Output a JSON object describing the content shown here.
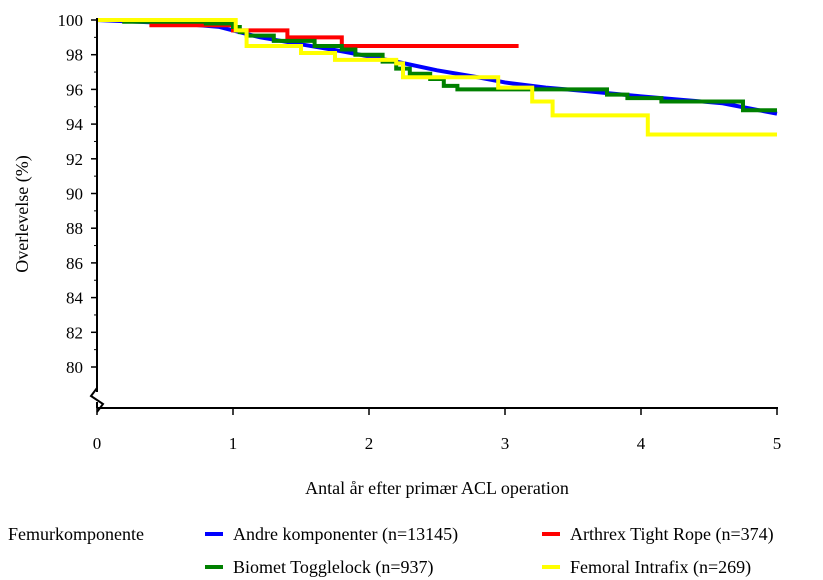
{
  "chart_data": {
    "type": "line",
    "title": "",
    "xlabel": "Antal år efter primær ACL operation",
    "ylabel": "Overlevelse (%)",
    "xlim": [
      0,
      5
    ],
    "ylim": [
      78,
      100
    ],
    "y_axis_break": true,
    "x_ticks": [
      0,
      1,
      2,
      3,
      4,
      5
    ],
    "y_ticks": [
      80,
      82,
      84,
      86,
      88,
      90,
      92,
      94,
      96,
      98,
      100
    ],
    "grid": false,
    "legend_title": "Femurkomponente",
    "legend_position": "bottom",
    "series": [
      {
        "name": "Andre komponenter (n=13145)",
        "color": "#0000ff",
        "step": false,
        "points": [
          [
            0,
            100
          ],
          [
            0.3,
            99.9
          ],
          [
            0.6,
            99.8
          ],
          [
            0.9,
            99.6
          ],
          [
            1.0,
            99.4
          ],
          [
            1.2,
            99.0
          ],
          [
            1.5,
            98.6
          ],
          [
            1.8,
            98.2
          ],
          [
            2.0,
            97.9
          ],
          [
            2.2,
            97.6
          ],
          [
            2.5,
            97.1
          ],
          [
            2.8,
            96.7
          ],
          [
            3.0,
            96.4
          ],
          [
            3.3,
            96.1
          ],
          [
            3.6,
            95.9
          ],
          [
            4.0,
            95.6
          ],
          [
            4.3,
            95.4
          ],
          [
            4.6,
            95.2
          ],
          [
            4.8,
            94.9
          ],
          [
            5.0,
            94.6
          ]
        ]
      },
      {
        "name": "Arthrex Tight Rope (n=374)",
        "color": "#ff0000",
        "step": true,
        "points": [
          [
            0,
            100
          ],
          [
            0.4,
            99.7
          ],
          [
            1.0,
            99.4
          ],
          [
            1.4,
            99.0
          ],
          [
            1.8,
            98.5
          ],
          [
            3.1,
            98.5
          ]
        ]
      },
      {
        "name": "Biomet Togglelock (n=937)",
        "color": "#008000",
        "step": true,
        "points": [
          [
            0,
            100
          ],
          [
            0.2,
            99.9
          ],
          [
            0.8,
            99.8
          ],
          [
            1.0,
            99.6
          ],
          [
            1.05,
            99.3
          ],
          [
            1.1,
            99.1
          ],
          [
            1.3,
            98.8
          ],
          [
            1.6,
            98.5
          ],
          [
            1.8,
            98.3
          ],
          [
            1.9,
            98.0
          ],
          [
            2.1,
            97.6
          ],
          [
            2.2,
            97.2
          ],
          [
            2.3,
            96.9
          ],
          [
            2.45,
            96.6
          ],
          [
            2.55,
            96.2
          ],
          [
            2.65,
            96.0
          ],
          [
            3.75,
            95.7
          ],
          [
            3.9,
            95.5
          ],
          [
            4.15,
            95.3
          ],
          [
            4.75,
            94.8
          ],
          [
            5.0,
            94.8
          ]
        ]
      },
      {
        "name": "Femoral Intrafix (n=269)",
        "color": "#ffff00",
        "step": true,
        "points": [
          [
            0,
            100
          ],
          [
            0.98,
            100
          ],
          [
            1.02,
            99.4
          ],
          [
            1.1,
            98.5
          ],
          [
            1.5,
            98.1
          ],
          [
            1.75,
            97.7
          ],
          [
            2.2,
            97.5
          ],
          [
            2.25,
            96.7
          ],
          [
            2.95,
            96.1
          ],
          [
            3.2,
            95.3
          ],
          [
            3.35,
            94.5
          ],
          [
            4.05,
            93.4
          ],
          [
            5.0,
            93.4
          ]
        ]
      }
    ]
  }
}
